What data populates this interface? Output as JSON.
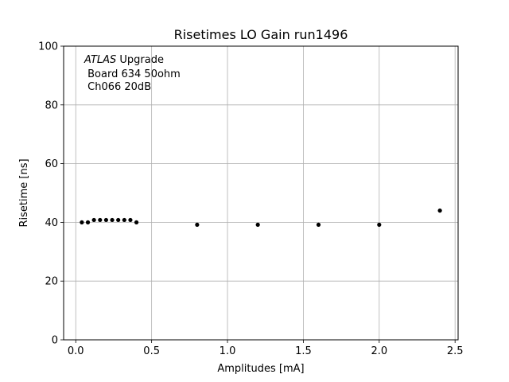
{
  "chart_data": {
    "type": "scatter",
    "title": "Risetimes LO Gain run1496",
    "xlabel": "Amplitudes [mA]",
    "ylabel": "Risetime [ns]",
    "xlim": [
      -0.08,
      2.52
    ],
    "ylim": [
      0,
      100
    ],
    "xticks": [
      0.0,
      0.5,
      1.0,
      1.5,
      2.0,
      2.5
    ],
    "xtick_labels": [
      "0.0",
      "0.5",
      "1.0",
      "1.5",
      "2.0",
      "2.5"
    ],
    "yticks": [
      0,
      20,
      40,
      60,
      80,
      100
    ],
    "ytick_labels": [
      "0",
      "20",
      "40",
      "60",
      "80",
      "100"
    ],
    "grid": true,
    "marker_color": "#000000",
    "series": [
      {
        "x": [
          0.04,
          0.08,
          0.12,
          0.16,
          0.2,
          0.24,
          0.28,
          0.32,
          0.36,
          0.4,
          0.8,
          1.2,
          1.6,
          2.0,
          2.4
        ],
        "y": [
          40.0,
          40.0,
          40.8,
          40.8,
          40.8,
          40.8,
          40.8,
          40.8,
          40.8,
          40.0,
          39.2,
          39.2,
          39.2,
          39.2,
          44.0
        ]
      }
    ],
    "annotation": {
      "atlas": "ATLAS",
      "upgrade": " Upgrade",
      "line2": " Board 634 50ohm",
      "line3": " Ch066 20dB"
    }
  }
}
